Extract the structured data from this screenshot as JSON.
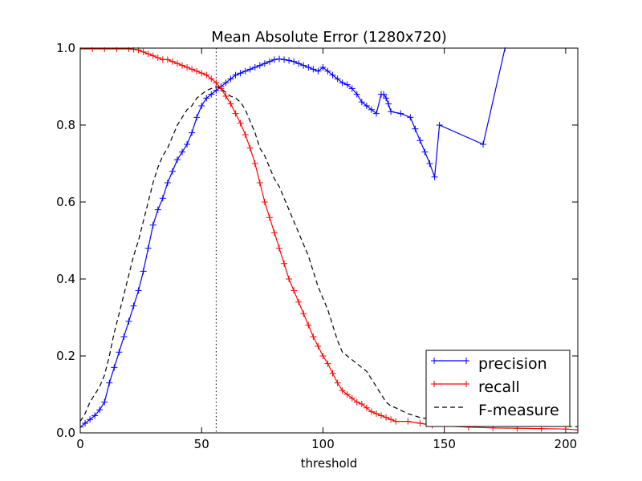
{
  "chart_data": {
    "type": "line",
    "title": "Mean Absolute Error (1280x720)",
    "xlabel": "threshold",
    "ylabel": "",
    "xlim": [
      0,
      205
    ],
    "ylim": [
      0,
      1.0
    ],
    "xticks": [
      0,
      50,
      100,
      150,
      200
    ],
    "yticks": [
      0.0,
      0.2,
      0.4,
      0.6,
      0.8,
      1.0
    ],
    "xtick_labels": [
      "0",
      "50",
      "100",
      "150",
      "200"
    ],
    "ytick_labels": [
      "0.0",
      "0.2",
      "0.4",
      "0.6",
      "0.8",
      "1.0"
    ],
    "vline_x": 56,
    "legend_position": "lower-right",
    "series": [
      {
        "name": "precision",
        "color": "#0000ff",
        "style": "solid-plus",
        "x": [
          0,
          2,
          4,
          6,
          8,
          10,
          12,
          14,
          16,
          18,
          20,
          22,
          24,
          26,
          28,
          30,
          32,
          34,
          36,
          38,
          40,
          42,
          44,
          46,
          48,
          50,
          52,
          54,
          56,
          58,
          60,
          62,
          64,
          66,
          68,
          70,
          72,
          74,
          76,
          78,
          80,
          82,
          84,
          86,
          88,
          90,
          92,
          94,
          96,
          98,
          100,
          102,
          104,
          106,
          108,
          110,
          112,
          114,
          116,
          118,
          120,
          122,
          124,
          125,
          126,
          127,
          128,
          132,
          136,
          138,
          140,
          142,
          144,
          146,
          148,
          166,
          175
        ],
        "y": [
          0.015,
          0.025,
          0.035,
          0.045,
          0.06,
          0.08,
          0.13,
          0.17,
          0.21,
          0.25,
          0.29,
          0.33,
          0.37,
          0.42,
          0.48,
          0.54,
          0.58,
          0.61,
          0.65,
          0.68,
          0.71,
          0.73,
          0.75,
          0.78,
          0.82,
          0.85,
          0.87,
          0.88,
          0.89,
          0.9,
          0.91,
          0.92,
          0.93,
          0.935,
          0.94,
          0.945,
          0.95,
          0.955,
          0.96,
          0.965,
          0.97,
          0.972,
          0.97,
          0.968,
          0.965,
          0.96,
          0.955,
          0.95,
          0.945,
          0.94,
          0.95,
          0.94,
          0.93,
          0.92,
          0.91,
          0.905,
          0.895,
          0.88,
          0.86,
          0.85,
          0.84,
          0.83,
          0.88,
          0.88,
          0.87,
          0.855,
          0.835,
          0.83,
          0.82,
          0.79,
          0.76,
          0.73,
          0.7,
          0.665,
          0.8,
          0.75,
          1.0
        ]
      },
      {
        "name": "recall",
        "color": "#ff0000",
        "style": "solid-plus",
        "x": [
          0,
          5,
          10,
          15,
          20,
          22,
          24,
          26,
          28,
          30,
          32,
          34,
          36,
          38,
          40,
          42,
          44,
          46,
          48,
          50,
          52,
          54,
          56,
          58,
          60,
          62,
          64,
          66,
          68,
          70,
          72,
          74,
          76,
          78,
          80,
          82,
          84,
          86,
          88,
          90,
          92,
          94,
          96,
          98,
          100,
          102,
          104,
          106,
          108,
          110,
          112,
          114,
          116,
          118,
          120,
          122,
          124,
          126,
          128,
          130,
          135,
          140,
          145,
          150,
          160,
          170,
          180,
          190,
          200,
          205
        ],
        "y": [
          0.998,
          0.998,
          0.998,
          0.998,
          0.998,
          0.997,
          0.995,
          0.99,
          0.985,
          0.98,
          0.975,
          0.97,
          0.97,
          0.965,
          0.96,
          0.955,
          0.95,
          0.945,
          0.94,
          0.935,
          0.93,
          0.92,
          0.91,
          0.895,
          0.875,
          0.855,
          0.83,
          0.805,
          0.775,
          0.74,
          0.7,
          0.65,
          0.6,
          0.56,
          0.52,
          0.48,
          0.44,
          0.4,
          0.37,
          0.34,
          0.31,
          0.28,
          0.25,
          0.225,
          0.2,
          0.18,
          0.155,
          0.13,
          0.11,
          0.1,
          0.09,
          0.08,
          0.075,
          0.065,
          0.055,
          0.05,
          0.045,
          0.04,
          0.035,
          0.03,
          0.03,
          0.025,
          0.02,
          0.018,
          0.015,
          0.013,
          0.012,
          0.011,
          0.01,
          0.008
        ]
      },
      {
        "name": "F-measure",
        "color": "#000000",
        "style": "dashed",
        "x": [
          0,
          2,
          4,
          6,
          8,
          10,
          12,
          14,
          16,
          18,
          20,
          22,
          24,
          26,
          28,
          30,
          32,
          34,
          36,
          38,
          40,
          42,
          44,
          46,
          48,
          50,
          52,
          54,
          56,
          58,
          60,
          62,
          64,
          66,
          68,
          70,
          72,
          74,
          76,
          78,
          80,
          82,
          84,
          86,
          88,
          90,
          92,
          94,
          96,
          98,
          100,
          102,
          104,
          106,
          108,
          110,
          112,
          114,
          116,
          118,
          120,
          122,
          124,
          126,
          128,
          130,
          135,
          140,
          145,
          150,
          160,
          170,
          180,
          190,
          200,
          205
        ],
        "y": [
          0.03,
          0.05,
          0.08,
          0.1,
          0.12,
          0.15,
          0.2,
          0.26,
          0.31,
          0.36,
          0.41,
          0.46,
          0.5,
          0.55,
          0.6,
          0.65,
          0.69,
          0.72,
          0.74,
          0.77,
          0.8,
          0.82,
          0.84,
          0.85,
          0.87,
          0.88,
          0.89,
          0.895,
          0.9,
          0.895,
          0.885,
          0.875,
          0.87,
          0.86,
          0.84,
          0.81,
          0.78,
          0.74,
          0.72,
          0.69,
          0.66,
          0.64,
          0.61,
          0.58,
          0.55,
          0.52,
          0.49,
          0.46,
          0.42,
          0.38,
          0.35,
          0.32,
          0.28,
          0.24,
          0.21,
          0.2,
          0.19,
          0.18,
          0.17,
          0.16,
          0.14,
          0.12,
          0.1,
          0.08,
          0.07,
          0.065,
          0.05,
          0.04,
          0.035,
          0.03,
          0.025,
          0.022,
          0.02,
          0.018,
          0.017,
          0.016
        ]
      }
    ]
  }
}
